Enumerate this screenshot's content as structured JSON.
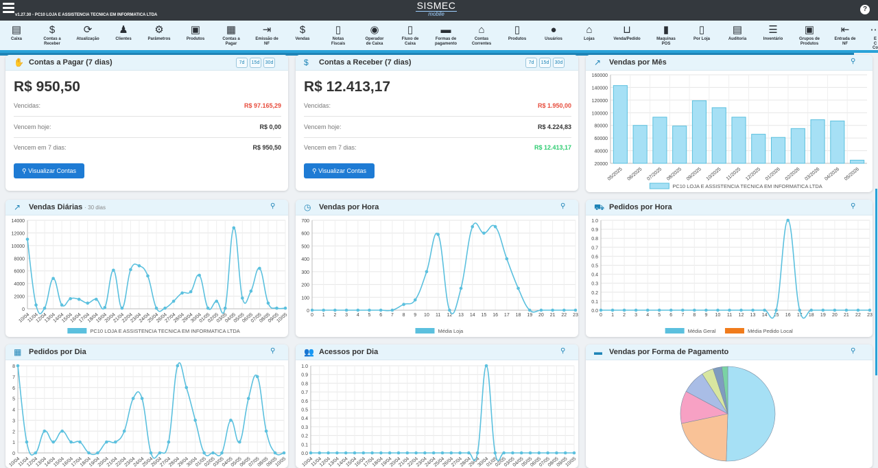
{
  "topbar": {
    "version": "v1.27.30 - PC10 LOJA E ASSISTENCIA TECNICA EM INFORMATICA LTDA",
    "brand": "SISMEC",
    "brand_sub": "mobile",
    "help": "?"
  },
  "toolbar": [
    {
      "label": "Caixa",
      "icon": "cash-register-icon",
      "glyph": "▤"
    },
    {
      "label": "Contas a\nReceber",
      "icon": "hand-dollar-icon",
      "glyph": "$"
    },
    {
      "label": "Atualização",
      "icon": "refresh-icon",
      "glyph": "⟳"
    },
    {
      "label": "Clientes",
      "icon": "person-icon",
      "glyph": "♟"
    },
    {
      "label": "Parâmetros",
      "icon": "gear-icon",
      "glyph": "⚙"
    },
    {
      "label": "Produtos",
      "icon": "box-icon",
      "glyph": "▣"
    },
    {
      "label": "Contas a\nPagar",
      "icon": "calculator-icon",
      "glyph": "▦"
    },
    {
      "label": "Emissão de\nNF",
      "icon": "file-export-icon",
      "glyph": "⇥"
    },
    {
      "label": "Vendas",
      "icon": "hand-dollar-icon",
      "glyph": "$"
    },
    {
      "label": "Notas\nFiscais",
      "icon": "invoice-icon",
      "glyph": "▯"
    },
    {
      "label": "Operador\nde Caixa",
      "icon": "coin-user-icon",
      "glyph": "◉"
    },
    {
      "label": "Fluxo de\nCaixa",
      "icon": "file-icon",
      "glyph": "▯"
    },
    {
      "label": "Formas de\npagamento",
      "icon": "credit-card-icon",
      "glyph": "▬"
    },
    {
      "label": "Contas\nCorrentes",
      "icon": "bank-icon",
      "glyph": "⌂"
    },
    {
      "label": "Produtos",
      "icon": "file-lines-icon",
      "glyph": "▯"
    },
    {
      "label": "Usuários",
      "icon": "user-icon",
      "glyph": "●"
    },
    {
      "label": "Lojas",
      "icon": "store-icon",
      "glyph": "⌂"
    },
    {
      "label": "Venda/Pedido",
      "icon": "basket-icon",
      "glyph": "⊔"
    },
    {
      "label": "Maquinas\nPOS",
      "icon": "pos-machine-icon",
      "glyph": "▮"
    },
    {
      "label": "Por Loja",
      "icon": "file-lines-icon",
      "glyph": "▯"
    },
    {
      "label": "Auditoria",
      "icon": "clipboard-icon",
      "glyph": "▤"
    },
    {
      "label": "Inventário",
      "icon": "list-icon",
      "glyph": "☰"
    },
    {
      "label": "Grupos de\nProdutos",
      "icon": "grid-box-icon",
      "glyph": "▣"
    },
    {
      "label": "Entrada de\nNF",
      "icon": "file-import-icon",
      "glyph": "⇤"
    },
    {
      "label": "E\nC\nCo",
      "icon": "more-icon",
      "glyph": "⋯"
    }
  ],
  "pagar": {
    "title": "Contas a Pagar (7 dias)",
    "ranges": [
      "7d",
      "15d",
      "30d"
    ],
    "amount": "R$ 950,50",
    "rows": [
      {
        "label": "Vencidas:",
        "value": "R$ 97.165,29"
      },
      {
        "label": "Vencem hoje:",
        "value": "R$ 0,00"
      },
      {
        "label": "Vencem em 7 dias:",
        "value": "R$ 950,50"
      }
    ],
    "button": "Visualizar Contas"
  },
  "receber": {
    "title": "Contas a Receber (7 dias)",
    "ranges": [
      "7d",
      "15d",
      "30d"
    ],
    "amount": "R$ 12.413,17",
    "rows": [
      {
        "label": "Vencidas:",
        "value": "R$ 1.950,00"
      },
      {
        "label": "Vencem hoje:",
        "value": "R$ 4.224,83"
      },
      {
        "label": "Vencem em 7 dias:",
        "value": "R$ 12.413,17"
      }
    ],
    "button": "Visualizar Contas"
  },
  "titles": {
    "mes": "Vendas por Mês",
    "diarias": "Vendas Diárias",
    "diarias_sub": "· 30 dias",
    "hora": "Vendas por Hora",
    "pedidos_hora": "Pedidos por Hora",
    "pedidos_dia": "Pedidos por Dia",
    "acessos": "Acessos por Dia",
    "forma": "Vendas por Forma de Pagamento"
  },
  "colors": {
    "accent": "#1e84b7",
    "line": "#5bc0de",
    "bar_fill": "#a6e0f5",
    "red": "#e74c3c",
    "green": "#2ecc71",
    "pedido_local": "#f07b1c"
  },
  "chart_data": [
    {
      "id": "mes",
      "type": "bar",
      "categories": [
        "05/2025",
        "06/2025",
        "07/2025",
        "08/2025",
        "09/2025",
        "10/2025",
        "11/2025",
        "12/2025",
        "01/2026",
        "02/2026",
        "03/2026",
        "04/2026",
        "05/2026"
      ],
      "series": [
        {
          "name": "PC10 LOJA E ASSISTENCIA TECNICA EM INFORMATICA LTDA",
          "values": [
            143000,
            80000,
            93000,
            79000,
            119000,
            108000,
            93000,
            66000,
            61000,
            75000,
            89000,
            87000,
            25000
          ]
        }
      ],
      "ylim": [
        20000,
        160000
      ],
      "yticks": [
        20000,
        40000,
        60000,
        80000,
        100000,
        120000,
        140000,
        160000
      ],
      "legend": "bottom"
    },
    {
      "id": "diarias",
      "type": "line",
      "categories": [
        "10/04",
        "11/04",
        "12/04",
        "13/04",
        "14/04",
        "15/04",
        "16/04",
        "17/04",
        "18/04",
        "19/04",
        "20/04",
        "21/04",
        "22/04",
        "23/04",
        "24/04",
        "25/04",
        "26/04",
        "27/04",
        "28/04",
        "29/04",
        "30/04",
        "01/05",
        "02/05",
        "03/05",
        "04/05",
        "05/05",
        "06/05",
        "07/05",
        "08/05",
        "09/05",
        "10/05"
      ],
      "series": [
        {
          "name": "PC10 LOJA E ASSISTENCIA TECNICA EM INFORMATICA LTDA",
          "values": [
            11000,
            600,
            100,
            4800,
            600,
            1600,
            1500,
            900,
            1500,
            200,
            6100,
            100,
            6200,
            6800,
            5200,
            100,
            100,
            1200,
            2500,
            2700,
            5300,
            100,
            1200,
            100,
            12800,
            1700,
            2800,
            6400,
            900,
            100,
            100
          ]
        }
      ],
      "ylim": [
        0,
        14000
      ],
      "yticks": [
        0,
        2000,
        4000,
        6000,
        8000,
        10000,
        12000,
        14000
      ],
      "legend": "bottom"
    },
    {
      "id": "hora",
      "type": "line",
      "categories": [
        "0",
        "1",
        "2",
        "3",
        "4",
        "5",
        "6",
        "7",
        "8",
        "9",
        "10",
        "11",
        "12",
        "13",
        "14",
        "15",
        "16",
        "17",
        "18",
        "19",
        "20",
        "21",
        "22",
        "23"
      ],
      "series": [
        {
          "name": "Média Loja",
          "values": [
            0,
            0,
            0,
            0,
            0,
            0,
            0,
            0,
            45,
            80,
            300,
            590,
            0,
            170,
            650,
            600,
            650,
            400,
            170,
            0,
            0,
            0,
            0,
            0
          ]
        }
      ],
      "ylim": [
        0,
        700
      ],
      "yticks": [
        0,
        100,
        200,
        300,
        400,
        500,
        600,
        700
      ],
      "legend": "bottom"
    },
    {
      "id": "pedidos_hora",
      "type": "line",
      "categories": [
        "0",
        "1",
        "2",
        "3",
        "4",
        "5",
        "6",
        "7",
        "8",
        "9",
        "10",
        "11",
        "12",
        "13",
        "14",
        "15",
        "16",
        "17",
        "18",
        "19",
        "20",
        "21",
        "22",
        "23"
      ],
      "series": [
        {
          "name": "Média Geral",
          "values": [
            0,
            0,
            0,
            0,
            0,
            0,
            0,
            0,
            0,
            0,
            0,
            0,
            0,
            0,
            0,
            0,
            1,
            0,
            0,
            0,
            0,
            0,
            0,
            0
          ]
        },
        {
          "name": "Média Pedido Local",
          "values": [
            0,
            0,
            0,
            0,
            0,
            0,
            0,
            0,
            0,
            0,
            0,
            0,
            0,
            0,
            0,
            0,
            0,
            0,
            0,
            0,
            0,
            0,
            0,
            0
          ]
        }
      ],
      "ylim": [
        0,
        1
      ],
      "yticks": [
        0,
        0.1,
        0.2,
        0.3,
        0.4,
        0.5,
        0.6,
        0.7,
        0.8,
        0.9,
        1.0
      ],
      "legend": "bottom"
    },
    {
      "id": "pedidos_dia",
      "type": "line",
      "categories": [
        "10/04",
        "11/04",
        "12/04",
        "13/04",
        "14/04",
        "15/04",
        "16/04",
        "17/04",
        "18/04",
        "19/04",
        "20/04",
        "21/04",
        "22/04",
        "23/04",
        "24/04",
        "25/04",
        "26/04",
        "27/04",
        "28/04",
        "29/04",
        "30/04",
        "01/05",
        "02/05",
        "03/05",
        "04/05",
        "05/05",
        "06/05",
        "07/05",
        "08/05",
        "09/05",
        "10/05"
      ],
      "series": [
        {
          "values": [
            8,
            1,
            0,
            2,
            1,
            2,
            1,
            1,
            0,
            0,
            1,
            1,
            2,
            5,
            5,
            0,
            0,
            1,
            8,
            6,
            3,
            0,
            0,
            0,
            3,
            1,
            5,
            7,
            2,
            0,
            0
          ]
        }
      ],
      "ylim": [
        0,
        8
      ],
      "yticks": [
        0,
        1,
        2,
        3,
        4,
        5,
        6,
        7,
        8
      ]
    },
    {
      "id": "acessos",
      "type": "line",
      "categories": [
        "10/04",
        "11/04",
        "12/04",
        "13/04",
        "14/04",
        "15/04",
        "16/04",
        "17/04",
        "18/04",
        "19/04",
        "20/04",
        "21/04",
        "22/04",
        "23/04",
        "24/04",
        "25/04",
        "26/04",
        "27/04",
        "28/04",
        "29/04",
        "30/04",
        "01/05",
        "02/05",
        "03/05",
        "04/05",
        "05/05",
        "06/05",
        "07/05",
        "08/05",
        "09/05",
        "10/05"
      ],
      "series": [
        {
          "values": [
            0,
            0,
            0,
            0,
            0,
            0,
            0,
            0,
            0,
            0,
            0,
            0,
            0,
            0,
            0,
            0,
            0,
            0,
            0,
            0,
            1,
            0,
            0,
            0,
            0,
            0,
            0,
            0,
            0,
            0,
            0
          ]
        }
      ],
      "ylim": [
        0,
        1
      ],
      "yticks": [
        0,
        0.1,
        0.2,
        0.3,
        0.4,
        0.5,
        0.6,
        0.7,
        0.8,
        0.9,
        1.0
      ]
    },
    {
      "id": "forma",
      "type": "pie",
      "slices": [
        {
          "value": 50,
          "color": "#a6e0f5"
        },
        {
          "value": 21,
          "color": "#f9c297"
        },
        {
          "value": 11,
          "color": "#f7a1c4"
        },
        {
          "value": 8,
          "color": "#a9bde6"
        },
        {
          "value": 4,
          "color": "#d8e6a0"
        },
        {
          "value": 3,
          "color": "#7f9cbf"
        },
        {
          "value": 2,
          "color": "#7ad3a4"
        }
      ]
    }
  ]
}
